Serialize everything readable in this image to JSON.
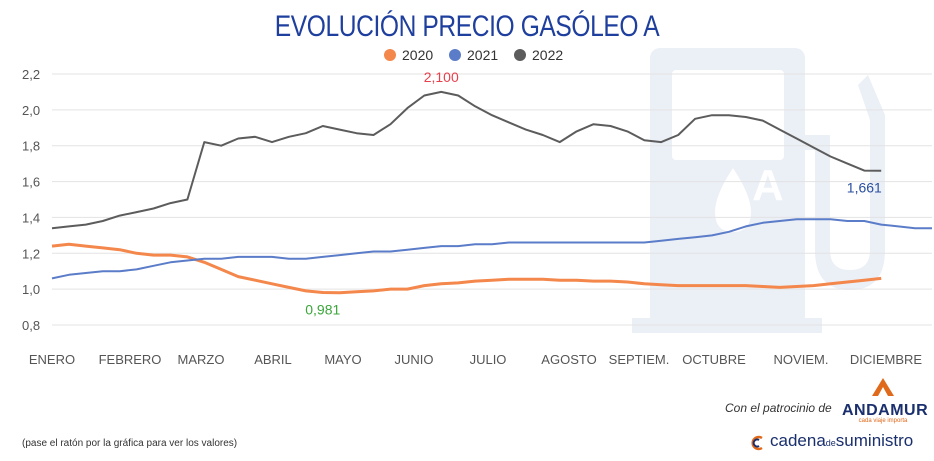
{
  "title": "EVOLUCIÓN PRECIO GASÓLEO A",
  "chart_data": {
    "type": "line",
    "ylim": [
      0.8,
      2.2
    ],
    "yticks": [
      "2,2",
      "2,0",
      "1,8",
      "1,6",
      "1,4",
      "1,2",
      "1,0",
      "0,8"
    ],
    "ytick_values": [
      2.2,
      2.0,
      1.8,
      1.6,
      1.4,
      1.2,
      1.0,
      0.8
    ],
    "months": [
      "ENERO",
      "FEBRERO",
      "MARZO",
      "ABRIL",
      "MAYO",
      "JUNIO",
      "JULIO",
      "AGOSTO",
      "SEPTIEM.",
      "OCTUBRE",
      "NOVIEM.",
      "DICIEMBRE"
    ],
    "x_range": [
      0,
      52
    ],
    "series": [
      {
        "name": "2020",
        "color": "#f4874b",
        "x": [
          0,
          1,
          2,
          3,
          4,
          5,
          6,
          7,
          8,
          9,
          10,
          11,
          12,
          13,
          14,
          15,
          16,
          17,
          18,
          19,
          20,
          21,
          22,
          23,
          24,
          25,
          26,
          27,
          28,
          29,
          30,
          31,
          32,
          33,
          34,
          35,
          36,
          37,
          38,
          39,
          40,
          41,
          42,
          43,
          44,
          45,
          46,
          47,
          48,
          49
        ],
        "values": [
          1.24,
          1.25,
          1.24,
          1.23,
          1.22,
          1.2,
          1.19,
          1.19,
          1.18,
          1.15,
          1.11,
          1.07,
          1.05,
          1.03,
          1.01,
          0.99,
          0.981,
          0.98,
          0.985,
          0.99,
          1.0,
          1.0,
          1.02,
          1.03,
          1.035,
          1.045,
          1.05,
          1.055,
          1.055,
          1.055,
          1.05,
          1.05,
          1.045,
          1.045,
          1.04,
          1.03,
          1.025,
          1.02,
          1.02,
          1.02,
          1.02,
          1.02,
          1.015,
          1.01,
          1.015,
          1.02,
          1.03,
          1.04,
          1.05,
          1.06
        ]
      },
      {
        "name": "2021",
        "color": "#5b7cc8",
        "x": [
          0,
          1,
          2,
          3,
          4,
          5,
          6,
          7,
          8,
          9,
          10,
          11,
          12,
          13,
          14,
          15,
          16,
          17,
          18,
          19,
          20,
          21,
          22,
          23,
          24,
          25,
          26,
          27,
          28,
          29,
          30,
          31,
          32,
          33,
          34,
          35,
          36,
          37,
          38,
          39,
          40,
          41,
          42,
          43,
          44,
          45,
          46,
          47,
          48,
          49,
          50,
          51,
          52
        ],
        "values": [
          1.06,
          1.08,
          1.09,
          1.1,
          1.1,
          1.11,
          1.13,
          1.15,
          1.16,
          1.17,
          1.17,
          1.18,
          1.18,
          1.18,
          1.17,
          1.17,
          1.18,
          1.19,
          1.2,
          1.21,
          1.21,
          1.22,
          1.23,
          1.24,
          1.24,
          1.25,
          1.25,
          1.26,
          1.26,
          1.26,
          1.26,
          1.26,
          1.26,
          1.26,
          1.26,
          1.26,
          1.27,
          1.28,
          1.29,
          1.3,
          1.32,
          1.35,
          1.37,
          1.38,
          1.39,
          1.39,
          1.39,
          1.38,
          1.38,
          1.36,
          1.35,
          1.34,
          1.34
        ]
      },
      {
        "name": "2022",
        "color": "#5c5c5c",
        "x": [
          0,
          1,
          2,
          3,
          4,
          5,
          6,
          7,
          8,
          9,
          10,
          11,
          12,
          13,
          14,
          15,
          16,
          17,
          18,
          19,
          20,
          21,
          22,
          23,
          24,
          25,
          26,
          27,
          28,
          29,
          30,
          31,
          32,
          33,
          34,
          35,
          36,
          37,
          38,
          39,
          40,
          41,
          42,
          43,
          44,
          45,
          46,
          47,
          48,
          49
        ],
        "values": [
          1.34,
          1.35,
          1.36,
          1.38,
          1.41,
          1.43,
          1.45,
          1.48,
          1.5,
          1.82,
          1.8,
          1.84,
          1.85,
          1.82,
          1.85,
          1.87,
          1.91,
          1.89,
          1.87,
          1.86,
          1.92,
          2.01,
          2.08,
          2.1,
          2.08,
          2.02,
          1.97,
          1.93,
          1.89,
          1.86,
          1.82,
          1.88,
          1.92,
          1.91,
          1.88,
          1.83,
          1.82,
          1.86,
          1.95,
          1.97,
          1.97,
          1.96,
          1.94,
          1.89,
          1.84,
          1.79,
          1.74,
          1.7,
          1.661,
          1.66
        ]
      }
    ],
    "annotations": [
      {
        "text": "2,100",
        "x": 23,
        "y": 2.1,
        "color": "#e8404c",
        "position": "above"
      },
      {
        "text": "0,981",
        "x": 16,
        "y": 0.981,
        "color": "#3aa63a",
        "position": "below"
      },
      {
        "text": "1,661",
        "x": 48,
        "y": 1.661,
        "color": "#2a4fa0",
        "position": "below"
      }
    ]
  },
  "sponsor_text": "Con el patrocinio de",
  "sponsor_brand": "ANDAMUR",
  "sponsor_tagline": "cada viaje importa",
  "hint": "(pase el ratón por la gráfica para ver los valores)",
  "cadena": {
    "part1": "cadena",
    "part2": "de",
    "part3": "suministro"
  }
}
